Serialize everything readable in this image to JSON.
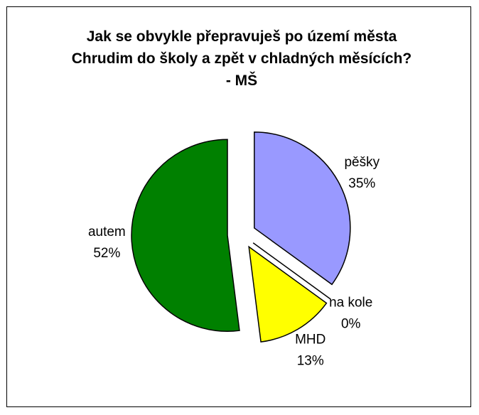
{
  "chart_data": {
    "type": "pie",
    "title": "Jak se obvykle přepravuješ po území města Chrudim do školy a zpět v chladných měsících? - MŠ",
    "categories": [
      "pěšky",
      "na kole",
      "MHD",
      "autem"
    ],
    "values": [
      35,
      0,
      13,
      52
    ],
    "value_labels": [
      "35%",
      "0%",
      "13%",
      "52%"
    ],
    "colors": [
      "#9999ff",
      "#800000",
      "#ffff00",
      "#008000"
    ]
  }
}
